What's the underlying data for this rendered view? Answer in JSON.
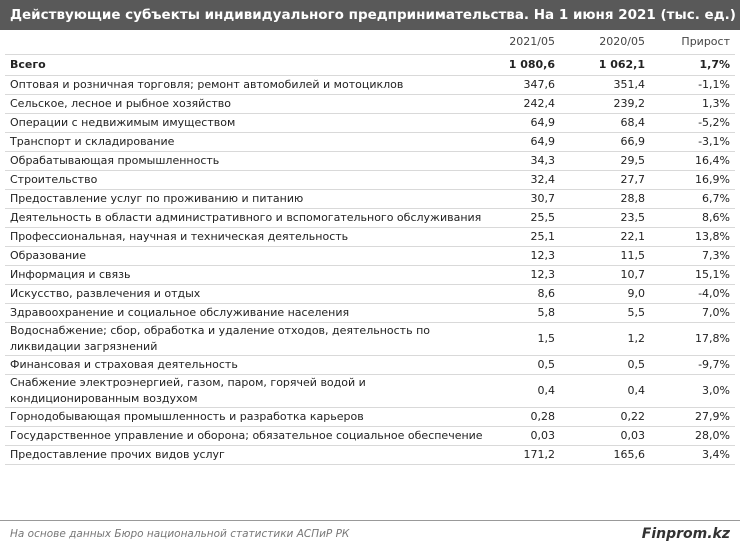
{
  "header": {
    "title": "Действующие субъекты индивидуального предпринимательства. На 1 июня 2021 (тыс. ед.)"
  },
  "table": {
    "columns": [
      "",
      "2021/05",
      "2020/05",
      "Прирост"
    ],
    "rows": [
      [
        "Всего",
        "1 080,6",
        "1 062,1",
        "1,7%"
      ],
      [
        "Оптовая и розничная торговля; ремонт автомобилей и мотоциклов",
        "347,6",
        "351,4",
        "-1,1%"
      ],
      [
        "Сельское, лесное и рыбное хозяйство",
        "242,4",
        "239,2",
        "1,3%"
      ],
      [
        "Операции с недвижимым имуществом",
        "64,9",
        "68,4",
        "-5,2%"
      ],
      [
        "Транспорт и складирование",
        "64,9",
        "66,9",
        "-3,1%"
      ],
      [
        "Обрабатывающая промышленность",
        "34,3",
        "29,5",
        "16,4%"
      ],
      [
        "Строительство",
        "32,4",
        "27,7",
        "16,9%"
      ],
      [
        "Предоставление услуг по проживанию и питанию",
        "30,7",
        "28,8",
        "6,7%"
      ],
      [
        "Деятельность в области административного и вспомогательного обслуживания",
        "25,5",
        "23,5",
        "8,6%"
      ],
      [
        "Профессиональная, научная и техническая деятельность",
        "25,1",
        "22,1",
        "13,8%"
      ],
      [
        "Образование",
        "12,3",
        "11,5",
        "7,3%"
      ],
      [
        "Информация и связь",
        "12,3",
        "10,7",
        "15,1%"
      ],
      [
        "Искусство, развлечения и отдых",
        "8,6",
        "9,0",
        "-4,0%"
      ],
      [
        "Здравоохранение и социальное обслуживание населения",
        "5,8",
        "5,5",
        "7,0%"
      ],
      [
        "Водоснабжение; сбор, обработка и удаление отходов, деятельность по ликвидации загрязнений",
        "1,5",
        "1,2",
        "17,8%"
      ],
      [
        "Финансовая и страховая деятельность",
        "0,5",
        "0,5",
        "-9,7%"
      ],
      [
        "Снабжение электроэнергией, газом, паром, горячей водой и кондиционированным воздухом",
        "0,4",
        "0,4",
        "3,0%"
      ],
      [
        "Горнодобывающая промышленность и разработка карьеров",
        "0,28",
        "0,22",
        "27,9%"
      ],
      [
        "Государственное управление и оборона; обязательное социальное обеспечение",
        "0,03",
        "0,03",
        "28,0%"
      ],
      [
        "Предоставление прочих видов услуг",
        "171,2",
        "165,6",
        "3,4%"
      ]
    ]
  },
  "footer": {
    "source": "На основе данных Бюро национальной статистики АСПиР РК",
    "brand": "Finprom.kz"
  }
}
